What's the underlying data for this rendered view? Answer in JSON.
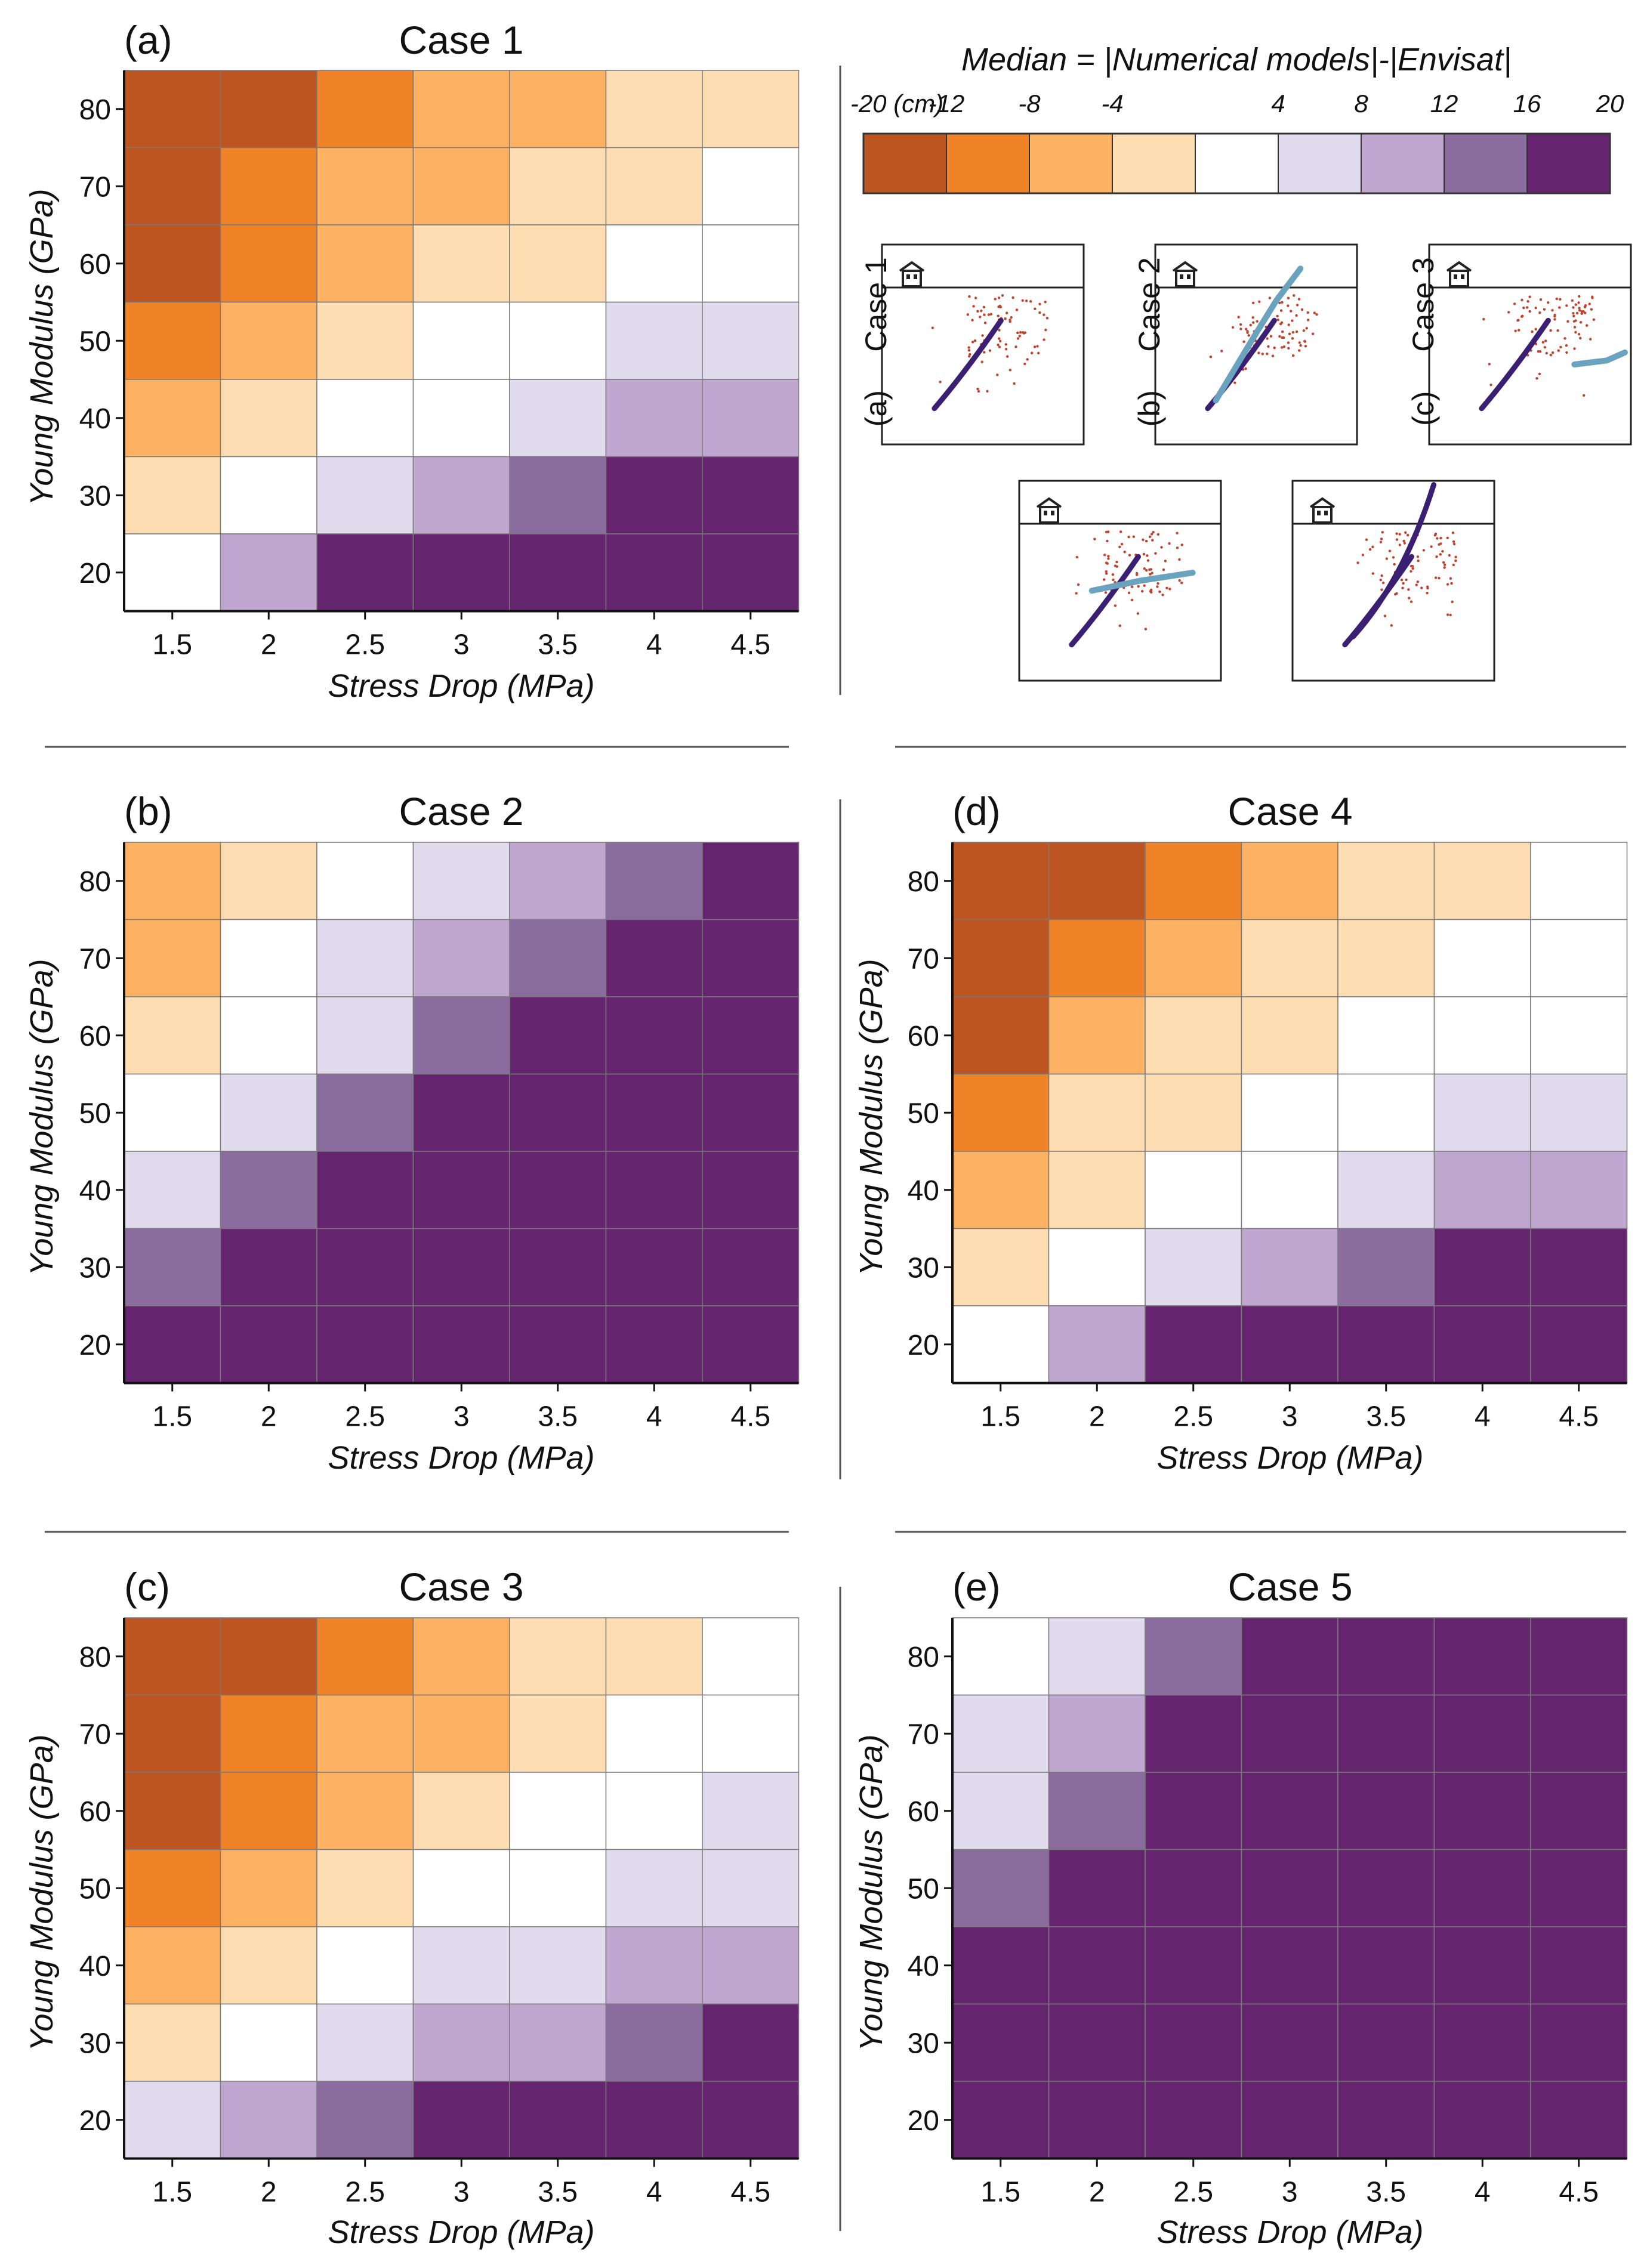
{
  "figure": {
    "colorbar": {
      "title": "Median = |Numerical models|-|Envisat|",
      "tick_labels": [
        "-20 (cm)",
        "-12",
        "-8",
        "-4",
        "4",
        "8",
        "12",
        "16",
        "20"
      ],
      "bins": [
        {
          "range": [
            -20,
            -12
          ],
          "color": "#bd5522"
        },
        {
          "range": [
            -12,
            -8
          ],
          "color": "#f08228"
        },
        {
          "range": [
            -8,
            -4
          ],
          "color": "#fdb162"
        },
        {
          "range": [
            -4,
            0
          ],
          "color": "#feddb2"
        },
        {
          "range": [
            0,
            4
          ],
          "color": "#ffffff"
        },
        {
          "range": [
            4,
            8
          ],
          "color": "#e0dced"
        },
        {
          "range": [
            8,
            12
          ],
          "color": "#bfa7d0"
        },
        {
          "range": [
            12,
            16
          ],
          "color": "#8b6c9f"
        },
        {
          "range": [
            16,
            20
          ],
          "color": "#64246e"
        }
      ]
    },
    "fault_diagrams": [
      {
        "case_label": "Case 1",
        "panel_label": "(a)"
      },
      {
        "case_label": "Case 2",
        "panel_label": "(b)"
      },
      {
        "case_label": "Case 3",
        "panel_label": "(c)"
      },
      {
        "case_label": "",
        "panel_label": ""
      },
      {
        "case_label": "",
        "panel_label": ""
      }
    ]
  },
  "chart_data": [
    {
      "type": "heatmap",
      "panel_label": "(a)",
      "title": "Case 1",
      "xlabel": "Stress Drop (MPa)",
      "ylabel": "Young Modulus (GPa)",
      "x": [
        "1.5",
        "2",
        "2.5",
        "3",
        "3.5",
        "4",
        "4.5"
      ],
      "y": [
        "80",
        "70",
        "60",
        "50",
        "40",
        "30",
        "20"
      ],
      "values": [
        [
          -16,
          -16,
          -10,
          -6,
          -6,
          -2,
          -2
        ],
        [
          -16,
          -10,
          -6,
          -6,
          -2,
          -2,
          2
        ],
        [
          -16,
          -10,
          -6,
          -2,
          -2,
          2,
          2
        ],
        [
          -10,
          -6,
          -2,
          2,
          2,
          6,
          6
        ],
        [
          -6,
          -2,
          2,
          2,
          6,
          10,
          10
        ],
        [
          -2,
          2,
          6,
          10,
          14,
          18,
          18
        ],
        [
          2,
          10,
          18,
          18,
          18,
          18,
          18
        ]
      ]
    },
    {
      "type": "heatmap",
      "panel_label": "(b)",
      "title": "Case 2",
      "xlabel": "Stress Drop (MPa)",
      "ylabel": "Young Modulus (GPa)",
      "x": [
        "1.5",
        "2",
        "2.5",
        "3",
        "3.5",
        "4",
        "4.5"
      ],
      "y": [
        "80",
        "70",
        "60",
        "50",
        "40",
        "30",
        "20"
      ],
      "values": [
        [
          -6,
          -2,
          2,
          6,
          10,
          14,
          18
        ],
        [
          -6,
          2,
          6,
          10,
          14,
          18,
          18
        ],
        [
          -2,
          2,
          6,
          14,
          18,
          18,
          18
        ],
        [
          2,
          6,
          14,
          18,
          18,
          18,
          18
        ],
        [
          6,
          14,
          18,
          18,
          18,
          18,
          18
        ],
        [
          14,
          18,
          18,
          18,
          18,
          18,
          18
        ],
        [
          18,
          18,
          18,
          18,
          18,
          18,
          18
        ]
      ]
    },
    {
      "type": "heatmap",
      "panel_label": "(c)",
      "title": "Case 3",
      "xlabel": "Stress Drop (MPa)",
      "ylabel": "Young Modulus (GPa)",
      "x": [
        "1.5",
        "2",
        "2.5",
        "3",
        "3.5",
        "4",
        "4.5"
      ],
      "y": [
        "80",
        "70",
        "60",
        "50",
        "40",
        "30",
        "20"
      ],
      "values": [
        [
          -16,
          -16,
          -10,
          -6,
          -2,
          -2,
          2
        ],
        [
          -16,
          -10,
          -6,
          -6,
          -2,
          2,
          2
        ],
        [
          -16,
          -10,
          -6,
          -2,
          2,
          2,
          6
        ],
        [
          -10,
          -6,
          -2,
          2,
          2,
          6,
          6
        ],
        [
          -6,
          -2,
          2,
          6,
          6,
          10,
          10
        ],
        [
          -2,
          2,
          6,
          10,
          10,
          14,
          18
        ],
        [
          6,
          10,
          14,
          18,
          18,
          18,
          18
        ]
      ]
    },
    {
      "type": "heatmap",
      "panel_label": "(d)",
      "title": "Case 4",
      "xlabel": "Stress Drop (MPa)",
      "ylabel": "Young Modulus (GPa)",
      "x": [
        "1.5",
        "2",
        "2.5",
        "3",
        "3.5",
        "4",
        "4.5"
      ],
      "y": [
        "80",
        "70",
        "60",
        "50",
        "40",
        "30",
        "20"
      ],
      "values": [
        [
          -16,
          -16,
          -10,
          -6,
          -2,
          -2,
          2
        ],
        [
          -16,
          -10,
          -6,
          -2,
          -2,
          2,
          2
        ],
        [
          -16,
          -6,
          -2,
          -2,
          2,
          2,
          2
        ],
        [
          -10,
          -2,
          -2,
          2,
          2,
          6,
          6
        ],
        [
          -6,
          -2,
          2,
          2,
          6,
          10,
          10
        ],
        [
          -2,
          2,
          6,
          10,
          14,
          18,
          18
        ],
        [
          2,
          10,
          18,
          18,
          18,
          18,
          18
        ]
      ]
    },
    {
      "type": "heatmap",
      "panel_label": "(e)",
      "title": "Case 5",
      "xlabel": "Stress Drop (MPa)",
      "ylabel": "Young Modulus (GPa)",
      "x": [
        "1.5",
        "2",
        "2.5",
        "3",
        "3.5",
        "4",
        "4.5"
      ],
      "y": [
        "80",
        "70",
        "60",
        "50",
        "40",
        "30",
        "20"
      ],
      "values": [
        [
          2,
          6,
          14,
          18,
          18,
          18,
          18
        ],
        [
          6,
          10,
          18,
          18,
          18,
          18,
          18
        ],
        [
          6,
          14,
          18,
          18,
          18,
          18,
          18
        ],
        [
          14,
          18,
          18,
          18,
          18,
          18,
          18
        ],
        [
          18,
          18,
          18,
          18,
          18,
          18,
          18
        ],
        [
          18,
          18,
          18,
          18,
          18,
          18,
          18
        ],
        [
          18,
          18,
          18,
          18,
          18,
          18,
          18
        ]
      ]
    }
  ]
}
